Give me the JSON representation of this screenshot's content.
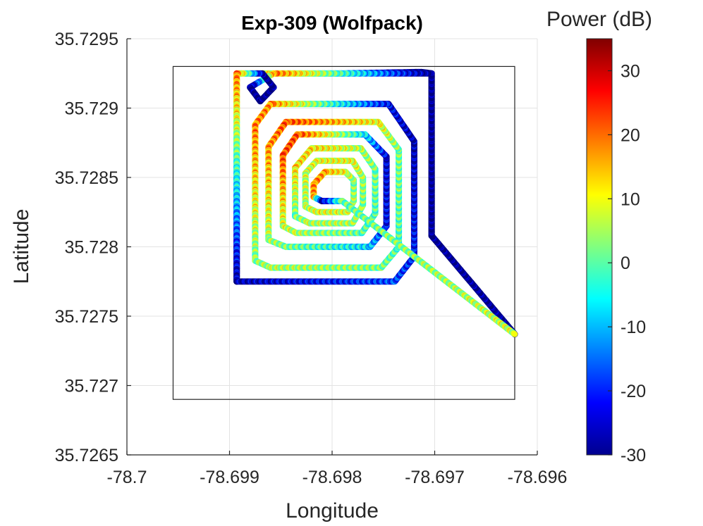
{
  "chart_data": {
    "type": "scatter",
    "title": "Exp-309 (Wolfpack)",
    "xlabel": "Longitude",
    "ylabel": "Latitude",
    "xlim": [
      -78.7,
      -78.696
    ],
    "ylim": [
      35.7265,
      35.7295
    ],
    "x_ticks": [
      "-78.7",
      "-78.699",
      "-78.698",
      "-78.697",
      "-78.696"
    ],
    "y_ticks": [
      "35.7295",
      "35.729",
      "35.7285",
      "35.728",
      "35.7275",
      "35.727",
      "35.7265"
    ],
    "grid": true,
    "colorbar": {
      "title": "Power (dB)",
      "range": [
        -30,
        35
      ],
      "ticks": [
        "30",
        "20",
        "10",
        "0",
        "-10",
        "-20",
        "-30"
      ],
      "colormap": "jet"
    },
    "boundary_rectangle": {
      "lon": [
        -78.69955,
        -78.69622
      ],
      "lat": [
        35.7269,
        35.7293
      ]
    },
    "series": [
      {
        "path": [
          [
            -78.69893,
            35.72775,
            -25
          ],
          [
            -78.69893,
            35.72925,
            22
          ],
          [
            -78.69788,
            35.72925,
            -8
          ],
          [
            -78.69713,
            35.72926,
            -28
          ],
          [
            -78.69703,
            35.72925,
            -28
          ],
          [
            -78.69703,
            35.72808,
            -28
          ],
          [
            -78.69622,
            35.72737,
            -27
          ],
          [
            -78.69703,
            35.72808,
            -28
          ],
          [
            -78.69703,
            35.72925,
            -28
          ],
          [
            -78.69857,
            35.72925,
            22
          ],
          [
            -78.6988,
            35.72915,
            -28
          ],
          [
            -78.6987,
            35.72905,
            -28
          ],
          [
            -78.69857,
            35.72915,
            -28
          ],
          [
            -78.69868,
            35.72925,
            -28
          ],
          [
            -78.69893,
            35.72925,
            22
          ],
          [
            -78.69893,
            35.72775,
            -25
          ],
          [
            -78.69739,
            35.72775,
            -15
          ],
          [
            -78.6972,
            35.72793,
            -18
          ],
          [
            -78.6972,
            35.72876,
            -25
          ],
          [
            -78.69745,
            35.72903,
            -20
          ],
          [
            -78.6986,
            35.72903,
            20
          ],
          [
            -78.69875,
            35.72888,
            22
          ],
          [
            -78.69875,
            35.7279,
            5
          ],
          [
            -78.6986,
            35.72785,
            8
          ],
          [
            -78.69752,
            35.72785,
            5
          ],
          [
            -78.69735,
            35.728,
            2
          ],
          [
            -78.69735,
            35.7287,
            5
          ],
          [
            -78.69755,
            35.7289,
            12
          ],
          [
            -78.69845,
            35.7289,
            25
          ],
          [
            -78.69862,
            35.72872,
            20
          ],
          [
            -78.69862,
            35.72805,
            8
          ],
          [
            -78.69845,
            35.728,
            5
          ],
          [
            -78.69763,
            35.728,
            -5
          ],
          [
            -78.69747,
            35.72815,
            -20
          ],
          [
            -78.69747,
            35.72865,
            -22
          ],
          [
            -78.69768,
            35.72881,
            -5
          ],
          [
            -78.69834,
            35.72881,
            25
          ],
          [
            -78.69848,
            35.72866,
            25
          ],
          [
            -78.69848,
            35.72815,
            10
          ],
          [
            -78.69835,
            35.7281,
            8
          ],
          [
            -78.69771,
            35.7281,
            3
          ],
          [
            -78.69758,
            35.72824,
            2
          ],
          [
            -78.69758,
            35.72856,
            5
          ],
          [
            -78.69772,
            35.72871,
            8
          ],
          [
            -78.6982,
            35.72871,
            15
          ],
          [
            -78.69836,
            35.72857,
            15
          ],
          [
            -78.69836,
            35.72822,
            5
          ],
          [
            -78.69822,
            35.72817,
            8
          ],
          [
            -78.6978,
            35.72817,
            8
          ],
          [
            -78.6977,
            35.7283,
            5
          ],
          [
            -78.6977,
            35.7285,
            7
          ],
          [
            -78.6978,
            35.72862,
            12
          ],
          [
            -78.69815,
            35.72862,
            12
          ],
          [
            -78.69826,
            35.72853,
            10
          ],
          [
            -78.69826,
            35.72829,
            8
          ],
          [
            -78.69815,
            35.72825,
            12
          ],
          [
            -78.69785,
            35.72825,
            10
          ],
          [
            -78.69779,
            35.72833,
            8
          ],
          [
            -78.69779,
            35.72848,
            5
          ],
          [
            -78.69787,
            35.72854,
            12
          ],
          [
            -78.69807,
            35.72854,
            18
          ],
          [
            -78.69818,
            35.72845,
            22
          ],
          [
            -78.69818,
            35.72836,
            20
          ],
          [
            -78.6981,
            35.72833,
            -25
          ],
          [
            -78.6979,
            35.72833,
            3
          ],
          [
            -78.69622,
            35.72737,
            10
          ]
        ]
      }
    ]
  }
}
